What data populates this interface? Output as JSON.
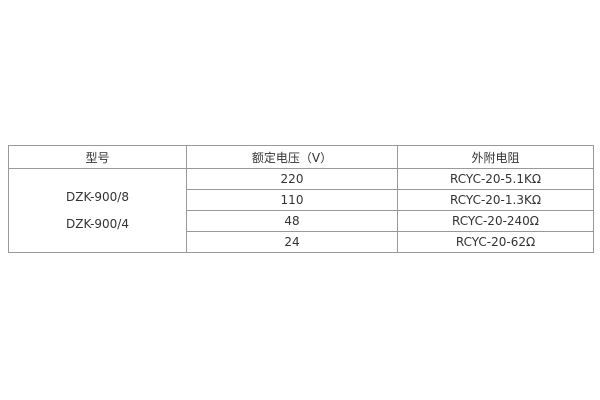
{
  "table": {
    "headers": {
      "model": "型号",
      "voltage": "额定电压（V）",
      "resistance": "外附电阻"
    },
    "models": [
      "DZK-900/8",
      "DZK-900/4"
    ],
    "rows": [
      {
        "voltage": "220",
        "resistance": "RCYC-20-5.1KΩ"
      },
      {
        "voltage": "110",
        "resistance": "RCYC-20-1.3KΩ"
      },
      {
        "voltage": "48",
        "resistance": "RCYC-20-240Ω"
      },
      {
        "voltage": "24",
        "resistance": "RCYC-20-62Ω"
      }
    ],
    "colors": {
      "border": "#999999",
      "text": "#333333",
      "background": "#ffffff"
    }
  }
}
